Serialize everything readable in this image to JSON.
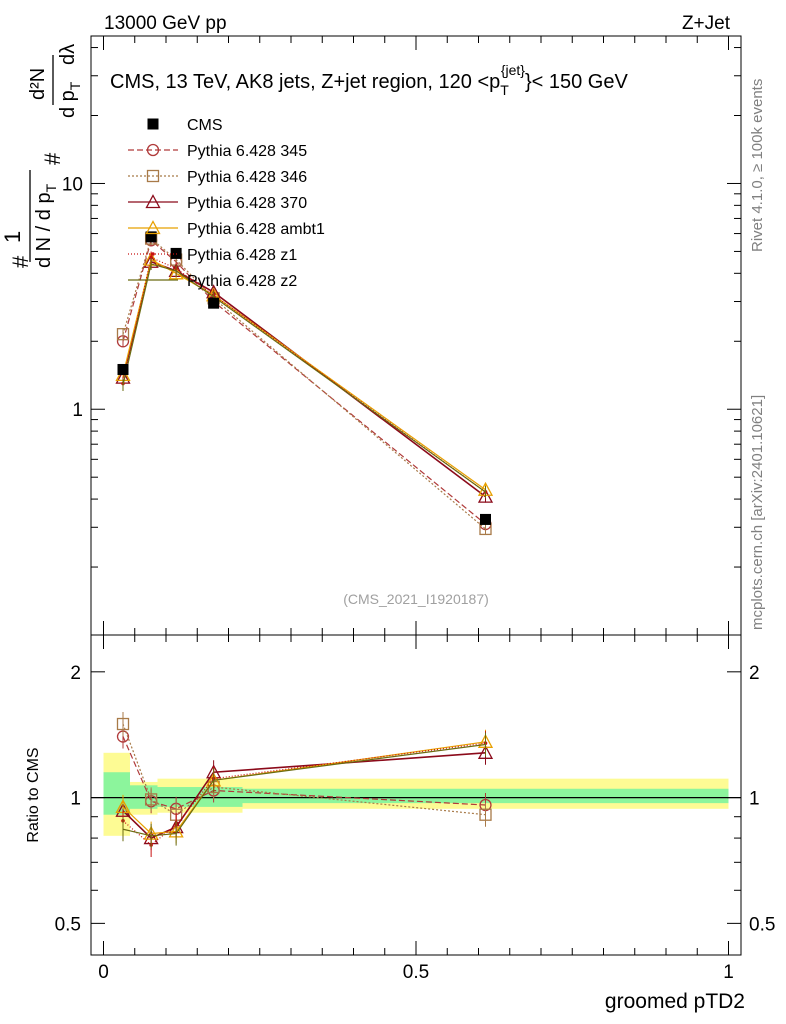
{
  "header": {
    "left": "13000 GeV pp",
    "right": "Z+Jet"
  },
  "side_labels": {
    "rivet": "Rivet 4.1.0, ≥ 100k events",
    "mcplots": "mcplots.cern.ch [arXiv:2401.10621]"
  },
  "analysis_id": "(CMS_2021_I1920187)",
  "plot_title": {
    "prefix": "CMS, 13 TeV, AK8 jets, Z+jet region, 120 <p",
    "sub": "T",
    "sup": "{jet}",
    "suffix": "}< 150 GeV"
  },
  "ylabel_main": {
    "numer": "1",
    "denom": "d N / d p",
    "denom_sub": "T",
    "hash": "#",
    "d2n": "d²N",
    "dpt": "d p",
    "dpt_sub": "T",
    "dlambda": "dλ"
  },
  "colors": {
    "cms": "#000000",
    "p345": "#b03a3a",
    "p346": "#a87a48",
    "p370": "#8b0a1a",
    "ambt1": "#e8a000",
    "z1": "#c81010",
    "z2": "#6b6b10",
    "band_green": "#8cf59c",
    "band_yellow": "#fdfb94"
  },
  "chart_data": [
    {
      "type": "line",
      "panel": "main",
      "title": "CMS, 13 TeV, AK8 jets, Z+jet region, 120 <p_T^{jet}< 150 GeV",
      "xlabel": "groomed pTD2",
      "ylabel": "1/(dN/dpT) d²N/(dpT dλ)",
      "yscale": "log",
      "xlim": [
        -0.02,
        1.02
      ],
      "ylim": [
        0.1,
        45
      ],
      "y_tick_labels": [
        "1",
        "10"
      ],
      "x": [
        0.0312,
        0.0762,
        0.1162,
        0.1762,
        0.6112
      ],
      "series": [
        {
          "name": "CMS",
          "marker": "filled-square",
          "values": [
            1.5,
            5.8,
            4.9,
            2.95,
            0.325
          ]
        },
        {
          "name": "Pythia 6.428 345",
          "marker": "open-circle",
          "dash": "6,3",
          "values": [
            2.0,
            5.6,
            4.5,
            3.0,
            0.31
          ]
        },
        {
          "name": "Pythia 6.428 346",
          "marker": "open-square",
          "dash": "2,2",
          "values": [
            2.15,
            5.7,
            4.6,
            3.1,
            0.295
          ]
        },
        {
          "name": "Pythia 6.428 370",
          "marker": "open-triangle",
          "dash": "",
          "values": [
            1.38,
            4.5,
            4.1,
            3.3,
            0.41
          ]
        },
        {
          "name": "Pythia 6.428 ambt1",
          "marker": "open-triangle",
          "dash": "",
          "values": [
            1.42,
            4.6,
            4.0,
            3.2,
            0.44
          ]
        },
        {
          "name": "Pythia 6.428 z1",
          "marker": "dot",
          "dash": "1,2",
          "values": [
            1.3,
            4.7,
            4.2,
            3.2,
            0.43
          ]
        },
        {
          "name": "Pythia 6.428 z2",
          "marker": "none",
          "dash": "",
          "values": [
            1.28,
            4.4,
            4.1,
            3.15,
            0.43
          ]
        }
      ]
    },
    {
      "type": "line",
      "panel": "ratio",
      "xlabel": "groomed pTD2",
      "ylabel": "Ratio to CMS",
      "yscale": "log",
      "xlim": [
        -0.02,
        1.02
      ],
      "ylim": [
        0.42,
        2.45
      ],
      "x_tick_labels": [
        "0",
        "0.5",
        "1"
      ],
      "y_tick_labels": [
        "0.5",
        "1",
        "2"
      ],
      "x": [
        0.0312,
        0.0762,
        0.1162,
        0.1762,
        0.6112
      ],
      "bands": [
        {
          "x_from": 0.0,
          "x_to": 0.0424,
          "green": [
            0.91,
            1.15
          ],
          "yellow": [
            0.81,
            1.28
          ]
        },
        {
          "x_from": 0.0424,
          "x_to": 0.0864,
          "green": [
            0.94,
            1.07
          ],
          "yellow": [
            0.91,
            1.09
          ]
        },
        {
          "x_from": 0.0864,
          "x_to": 0.2224,
          "green": [
            0.95,
            1.06
          ],
          "yellow": [
            0.92,
            1.11
          ]
        },
        {
          "x_from": 0.2224,
          "x_to": 1.0,
          "green": [
            0.97,
            1.05
          ],
          "yellow": [
            0.94,
            1.11
          ]
        }
      ],
      "series": [
        {
          "name": "Pythia 6.428 345",
          "values": [
            1.4,
            0.98,
            0.94,
            1.04,
            0.96
          ]
        },
        {
          "name": "Pythia 6.428 346",
          "values": [
            1.5,
            0.99,
            0.91,
            1.06,
            0.91
          ]
        },
        {
          "name": "Pythia 6.428 370",
          "values": [
            0.93,
            0.8,
            0.85,
            1.15,
            1.28
          ]
        },
        {
          "name": "Pythia 6.428 ambt1",
          "values": [
            0.95,
            0.82,
            0.83,
            1.1,
            1.36
          ]
        },
        {
          "name": "Pythia 6.428 z1",
          "values": [
            0.88,
            0.77,
            0.86,
            1.11,
            1.35
          ]
        },
        {
          "name": "Pythia 6.428 z2",
          "values": [
            0.84,
            0.81,
            0.82,
            1.1,
            1.34
          ]
        }
      ]
    }
  ]
}
